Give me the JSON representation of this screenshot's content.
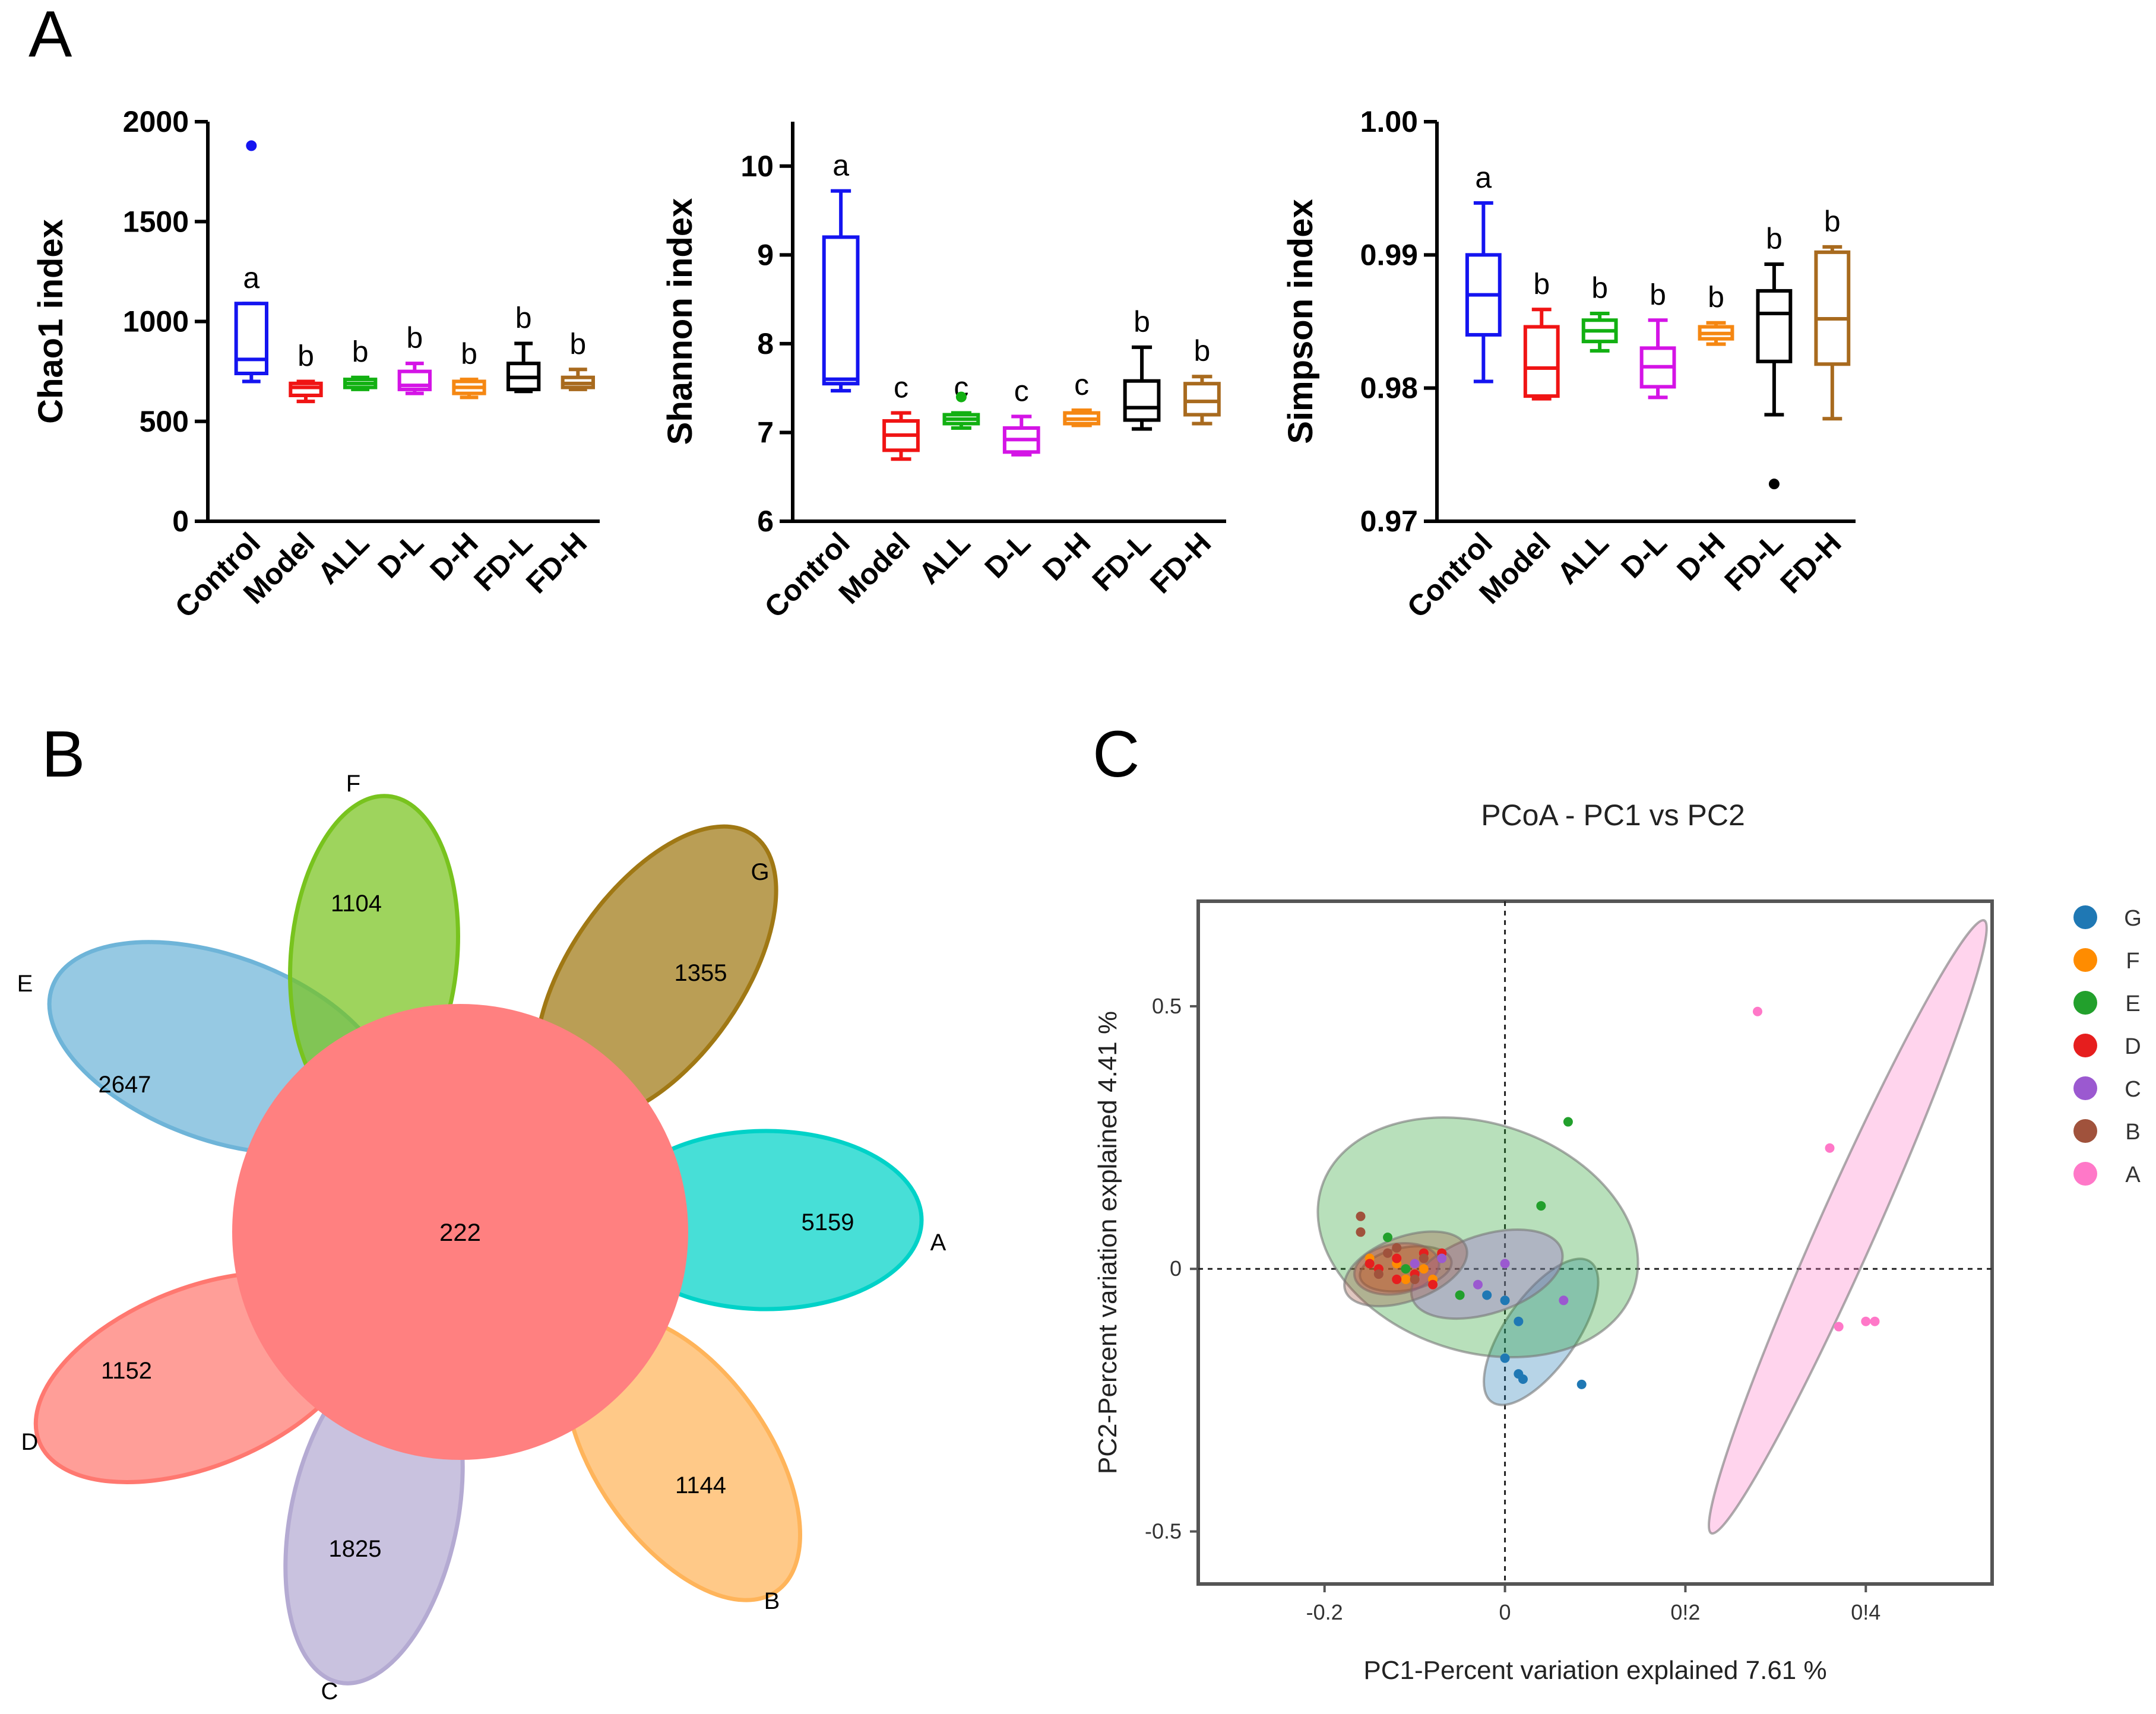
{
  "panel_labels": {
    "a": "A",
    "b": "B",
    "c": "C"
  },
  "chart_data": [
    {
      "id": "chao1",
      "type": "box",
      "ylabel": "Chao1 index",
      "ylim": [
        0,
        2000
      ],
      "yticks": [
        0,
        500,
        1000,
        1500,
        2000
      ],
      "categories": [
        "Control",
        "Model",
        "ALL",
        "D-L",
        "D-H",
        "FD-L",
        "FD-H"
      ],
      "colors": [
        "#1414f0",
        "#f01414",
        "#12b012",
        "#d414e6",
        "#f58712",
        "#000000",
        "#a86a1e"
      ],
      "boxes": [
        {
          "min": 700,
          "q1": 740,
          "median": 810,
          "q3": 1090,
          "max": 1090
        },
        {
          "min": 600,
          "q1": 630,
          "median": 670,
          "q3": 690,
          "max": 700
        },
        {
          "min": 660,
          "q1": 670,
          "median": 690,
          "q3": 710,
          "max": 720
        },
        {
          "min": 640,
          "q1": 660,
          "median": 680,
          "q3": 750,
          "max": 790
        },
        {
          "min": 620,
          "q1": 640,
          "median": 670,
          "q3": 700,
          "max": 710
        },
        {
          "min": 650,
          "q1": 660,
          "median": 720,
          "q3": 790,
          "max": 890
        },
        {
          "min": 660,
          "q1": 670,
          "median": 690,
          "q3": 720,
          "max": 760
        }
      ],
      "outliers": [
        {
          "category": "Control",
          "value": 1880
        }
      ],
      "letters": [
        "a",
        "b",
        "b",
        "b",
        "b",
        "b",
        "b"
      ]
    },
    {
      "id": "shannon",
      "type": "box",
      "ylabel": "Shannon index",
      "ylim": [
        6,
        10.5
      ],
      "yticks": [
        6,
        7,
        8,
        9,
        10
      ],
      "categories": [
        "Control",
        "Model",
        "ALL",
        "D-L",
        "D-H",
        "FD-L",
        "FD-H"
      ],
      "colors": [
        "#1414f0",
        "#f01414",
        "#12b012",
        "#d414e6",
        "#f58712",
        "#000000",
        "#a86a1e"
      ],
      "boxes": [
        {
          "min": 7.47,
          "q1": 7.55,
          "median": 7.6,
          "q3": 9.2,
          "max": 9.72
        },
        {
          "min": 6.7,
          "q1": 6.8,
          "median": 6.97,
          "q3": 7.13,
          "max": 7.22
        },
        {
          "min": 7.05,
          "q1": 7.1,
          "median": 7.15,
          "q3": 7.2,
          "max": 7.22
        },
        {
          "min": 6.75,
          "q1": 6.78,
          "median": 6.92,
          "q3": 7.05,
          "max": 7.18
        },
        {
          "min": 7.08,
          "q1": 7.1,
          "median": 7.15,
          "q3": 7.22,
          "max": 7.25
        },
        {
          "min": 7.04,
          "q1": 7.14,
          "median": 7.28,
          "q3": 7.58,
          "max": 7.96
        },
        {
          "min": 7.1,
          "q1": 7.2,
          "median": 7.35,
          "q3": 7.55,
          "max": 7.63
        }
      ],
      "outliers": [
        {
          "category": "ALL",
          "value": 7.4
        }
      ],
      "letters": [
        "a",
        "c",
        "c",
        "c",
        "c",
        "b",
        "b"
      ]
    },
    {
      "id": "simpson",
      "type": "box",
      "ylabel": "Simpson index",
      "ylim": [
        0.97,
        1.0
      ],
      "yticks": [
        "0.97",
        "0.98",
        "0.99",
        "1.00"
      ],
      "categories": [
        "Control",
        "Model",
        "ALL",
        "D-L",
        "D-H",
        "FD-L",
        "FD-H"
      ],
      "colors": [
        "#1414f0",
        "#f01414",
        "#12b012",
        "#d414e6",
        "#f58712",
        "#000000",
        "#a86a1e"
      ],
      "boxes": [
        {
          "min": 0.9805,
          "q1": 0.984,
          "median": 0.987,
          "q3": 0.99,
          "max": 0.9939
        },
        {
          "min": 0.9792,
          "q1": 0.9794,
          "median": 0.9815,
          "q3": 0.9846,
          "max": 0.9859
        },
        {
          "min": 0.9828,
          "q1": 0.9835,
          "median": 0.9843,
          "q3": 0.9851,
          "max": 0.9856
        },
        {
          "min": 0.9793,
          "q1": 0.9801,
          "median": 0.9816,
          "q3": 0.983,
          "max": 0.9851
        },
        {
          "min": 0.9833,
          "q1": 0.9837,
          "median": 0.9841,
          "q3": 0.9846,
          "max": 0.9849
        },
        {
          "min": 0.978,
          "q1": 0.982,
          "median": 0.9856,
          "q3": 0.9873,
          "max": 0.9893
        },
        {
          "min": 0.9777,
          "q1": 0.9818,
          "median": 0.9852,
          "q3": 0.9902,
          "max": 0.9906
        }
      ],
      "outliers": [
        {
          "category": "FD-L",
          "value": 0.9728
        }
      ],
      "letters": [
        "a",
        "b",
        "b",
        "b",
        "b",
        "b",
        "b"
      ]
    },
    {
      "id": "venn",
      "type": "venn",
      "sets": [
        {
          "name": "A",
          "unique": "5159",
          "color": "#00d2c8"
        },
        {
          "name": "B",
          "unique": "1144",
          "color": "#ffb45a"
        },
        {
          "name": "C",
          "unique": "1825",
          "color": "#b4aad2"
        },
        {
          "name": "D",
          "unique": "1152",
          "color": "#ff7870"
        },
        {
          "name": "E",
          "unique": "2647",
          "color": "#6eb4d8"
        },
        {
          "name": "F",
          "unique": "1104",
          "color": "#78c31e"
        },
        {
          "name": "G",
          "unique": "1355",
          "color": "#a07814"
        }
      ],
      "core": "222"
    },
    {
      "id": "pcoa",
      "type": "scatter",
      "title": "PCoA - PC1 vs PC2",
      "xlabel": "PC1-Percent variation explained 7.61 %",
      "ylabel": "PC2-Percent variation explained 4.41 %",
      "xlim": [
        -0.34,
        0.54
      ],
      "ylim": [
        -0.6,
        0.7
      ],
      "xticks": [
        "-0.2",
        "0",
        "0!2",
        "0!4"
      ],
      "xtick_values": [
        -0.2,
        0,
        0.2,
        0.4
      ],
      "yticks": [
        "-0.5",
        "0",
        "0.5"
      ],
      "ytick_values": [
        -0.5,
        0,
        0.5
      ],
      "groups": [
        {
          "name": "G",
          "color": "#1f78b4",
          "ellipse": {
            "cx": 0.04,
            "cy": -0.12,
            "rx": 0.12,
            "ry": 0.05,
            "angle": -55
          },
          "points": [
            [
              -0.02,
              -0.05
            ],
            [
              0.0,
              -0.06
            ],
            [
              0.015,
              -0.1
            ],
            [
              0.0,
              -0.17
            ],
            [
              0.015,
              -0.2
            ],
            [
              0.02,
              -0.21
            ],
            [
              0.085,
              -0.22
            ]
          ]
        },
        {
          "name": "F",
          "color": "#ff8c00",
          "ellipse": {
            "cx": -0.11,
            "cy": 0.0,
            "rx": 0.065,
            "ry": 0.03,
            "angle": -10
          },
          "points": [
            [
              -0.15,
              0.02
            ],
            [
              -0.12,
              0.01
            ],
            [
              -0.1,
              0.01
            ],
            [
              -0.11,
              -0.02
            ],
            [
              -0.09,
              0.0
            ],
            [
              -0.08,
              -0.02
            ]
          ]
        },
        {
          "name": "E",
          "color": "#22a02c",
          "ellipse": {
            "cx": -0.03,
            "cy": 0.06,
            "rx": 0.23,
            "ry": 0.16,
            "angle": 18
          },
          "points": [
            [
              0.07,
              0.28
            ],
            [
              0.04,
              0.12
            ],
            [
              -0.13,
              0.06
            ],
            [
              -0.09,
              0.03
            ],
            [
              -0.05,
              -0.05
            ],
            [
              -0.11,
              0.0
            ]
          ]
        },
        {
          "name": "D",
          "color": "#e61e1e",
          "ellipse": {
            "cx": -0.12,
            "cy": 0.0,
            "rx": 0.06,
            "ry": 0.035,
            "angle": -10
          },
          "points": [
            [
              -0.15,
              0.01
            ],
            [
              -0.14,
              0.0
            ],
            [
              -0.12,
              -0.02
            ],
            [
              -0.12,
              0.02
            ],
            [
              -0.1,
              -0.01
            ],
            [
              -0.09,
              0.03
            ],
            [
              -0.08,
              -0.03
            ],
            [
              -0.07,
              0.03
            ]
          ]
        },
        {
          "name": "C",
          "color": "#9b59d0",
          "ellipse": {
            "cx": -0.02,
            "cy": -0.01,
            "rx": 0.11,
            "ry": 0.055,
            "angle": -18
          },
          "points": [
            [
              0.0,
              0.01
            ],
            [
              0.065,
              -0.06
            ],
            [
              -0.03,
              -0.03
            ],
            [
              -0.07,
              0.02
            ],
            [
              -0.1,
              0.01
            ]
          ]
        },
        {
          "name": "B",
          "color": "#a0523c",
          "ellipse": {
            "cx": -0.11,
            "cy": 0.0,
            "rx": 0.09,
            "ry": 0.045,
            "angle": -20
          },
          "points": [
            [
              -0.16,
              0.1
            ],
            [
              -0.16,
              0.07
            ],
            [
              -0.13,
              0.03
            ],
            [
              -0.12,
              0.04
            ],
            [
              -0.1,
              -0.02
            ],
            [
              -0.14,
              -0.01
            ],
            [
              -0.09,
              0.02
            ]
          ]
        },
        {
          "name": "A",
          "color": "#ff78c8",
          "ellipse": {
            "cx": 0.38,
            "cy": 0.08,
            "rx": 0.47,
            "ry": 0.04,
            "angle": -66
          },
          "points": [
            [
              0.28,
              0.49
            ],
            [
              0.36,
              0.23
            ],
            [
              0.37,
              -0.11
            ],
            [
              0.4,
              -0.1
            ],
            [
              0.41,
              -0.1
            ]
          ]
        }
      ]
    }
  ]
}
